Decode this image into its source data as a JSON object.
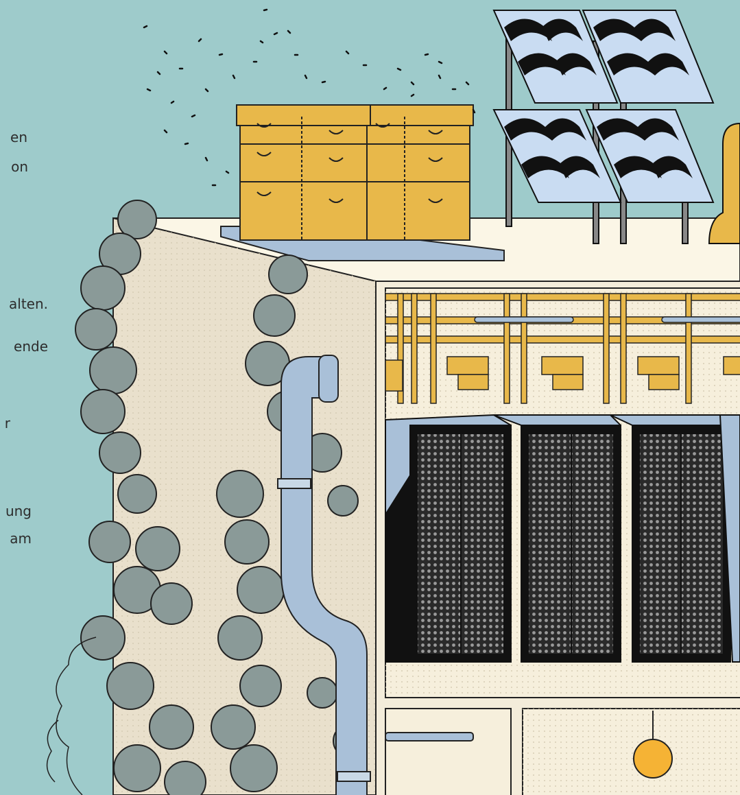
{
  "text_fragments": [
    "en",
    "on",
    "alten.",
    "ende",
    "r",
    "ung",
    "am"
  ]
}
